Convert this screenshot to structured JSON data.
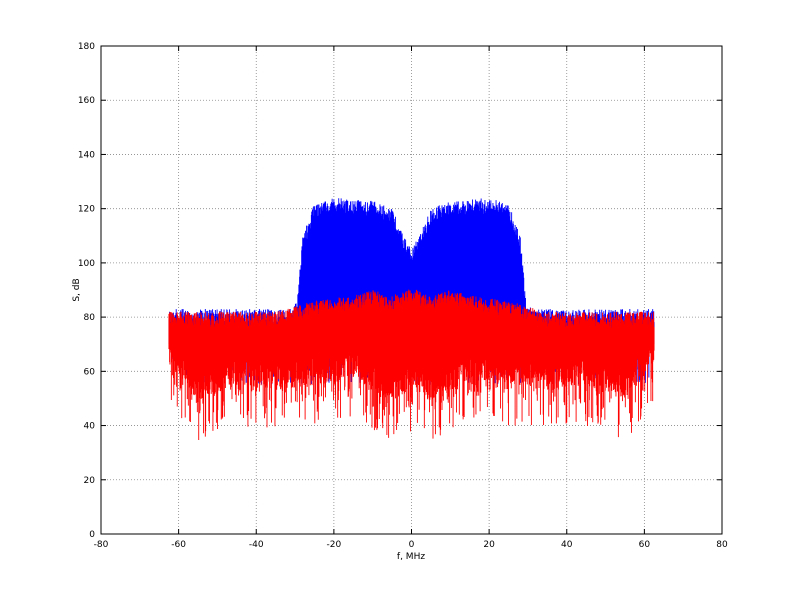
{
  "chart_data": {
    "type": "line",
    "title": "",
    "xlabel": "f, MHz",
    "ylabel": "S, dB",
    "xlim": [
      -80,
      80
    ],
    "ylim": [
      0,
      180
    ],
    "xticks": [
      -80,
      -60,
      -40,
      -20,
      0,
      20,
      40,
      60,
      80
    ],
    "yticks": [
      0,
      20,
      40,
      60,
      80,
      100,
      120,
      140,
      160,
      180
    ],
    "grid": true,
    "legend": "none",
    "series": [
      {
        "color": "#0000ff",
        "x_range": [
          -62.5,
          62.5
        ],
        "upper_envelope": [
          [
            -62.5,
            83
          ],
          [
            -31,
            83
          ],
          [
            -29.5,
            86
          ],
          [
            -28,
            110
          ],
          [
            -25,
            122
          ],
          [
            -20,
            124
          ],
          [
            -10,
            123
          ],
          [
            -5,
            120
          ],
          [
            -2,
            110
          ],
          [
            0,
            105
          ],
          [
            2,
            110
          ],
          [
            5,
            120
          ],
          [
            10,
            123
          ],
          [
            20,
            124
          ],
          [
            25,
            122
          ],
          [
            28,
            110
          ],
          [
            29.5,
            86
          ],
          [
            31,
            83
          ],
          [
            62.5,
            83
          ]
        ],
        "lower_envelope": [
          [
            -62.5,
            55
          ],
          [
            62.5,
            55
          ]
        ]
      },
      {
        "color": "#ff0000",
        "x_range": [
          -62.5,
          62.5
        ],
        "upper_envelope": [
          [
            -62.5,
            82
          ],
          [
            -35,
            82
          ],
          [
            -30,
            84
          ],
          [
            -25,
            86
          ],
          [
            -20,
            87
          ],
          [
            -15,
            88
          ],
          [
            -10,
            90
          ],
          [
            -5,
            88
          ],
          [
            0,
            91
          ],
          [
            5,
            88
          ],
          [
            10,
            90
          ],
          [
            15,
            88
          ],
          [
            20,
            87
          ],
          [
            25,
            86
          ],
          [
            30,
            84
          ],
          [
            35,
            82
          ],
          [
            62.5,
            82
          ]
        ],
        "lower_envelope": [
          [
            -62.5,
            48
          ],
          [
            -55,
            34
          ],
          [
            -45,
            40
          ],
          [
            -35,
            38
          ],
          [
            -25,
            40
          ],
          [
            -15,
            42
          ],
          [
            -5,
            34
          ],
          [
            0,
            38
          ],
          [
            5,
            34
          ],
          [
            15,
            42
          ],
          [
            25,
            40
          ],
          [
            35,
            38
          ],
          [
            45,
            40
          ],
          [
            55,
            34
          ],
          [
            62.5,
            48
          ]
        ]
      }
    ]
  }
}
